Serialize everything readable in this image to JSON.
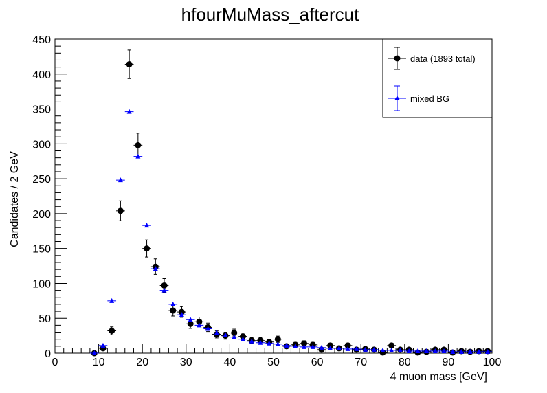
{
  "chart_data": {
    "type": "scatter",
    "title": "hfourMuMass_aftercut",
    "xlabel": "4 muon mass [GeV]",
    "ylabel": "Candidates / 2 GeV",
    "xlim": [
      0,
      100
    ],
    "ylim": [
      0,
      450
    ],
    "bin_width": 2,
    "x_ticks": [
      0,
      10,
      20,
      30,
      40,
      50,
      60,
      70,
      80,
      90,
      100
    ],
    "y_ticks": [
      0,
      50,
      100,
      150,
      200,
      250,
      300,
      350,
      400,
      450
    ],
    "grid": false,
    "legend_position": "top-right",
    "series": [
      {
        "name": "data (1893 total)",
        "color": "#000000",
        "marker": "circle",
        "x": [
          9,
          11,
          13,
          15,
          17,
          19,
          21,
          23,
          25,
          27,
          29,
          31,
          33,
          35,
          37,
          39,
          41,
          43,
          45,
          47,
          49,
          51,
          53,
          55,
          57,
          59,
          61,
          63,
          65,
          67,
          69,
          71,
          73,
          75,
          77,
          79,
          81,
          83,
          85,
          87,
          89,
          91,
          93,
          95,
          97,
          99
        ],
        "y": [
          0,
          7,
          32,
          204,
          414,
          298,
          150,
          124,
          97,
          61,
          59,
          42,
          45,
          37,
          27,
          25,
          29,
          24,
          18,
          18,
          16,
          20,
          10,
          12,
          14,
          12,
          5,
          11,
          7,
          11,
          5,
          6,
          5,
          1,
          11,
          5,
          5,
          1,
          2,
          5,
          5,
          1,
          3,
          2,
          3,
          3
        ]
      },
      {
        "name": "mixed BG",
        "color": "#0000ff",
        "marker": "triangle",
        "x": [
          9,
          11,
          13,
          15,
          17,
          19,
          21,
          23,
          25,
          27,
          29,
          31,
          33,
          35,
          37,
          39,
          41,
          43,
          45,
          47,
          49,
          51,
          53,
          55,
          57,
          59,
          61,
          63,
          65,
          67,
          69,
          71,
          73,
          75,
          77,
          79,
          81,
          83,
          85,
          87,
          89,
          91,
          93,
          95,
          97,
          99
        ],
        "y": [
          0,
          11,
          75,
          248,
          346,
          282,
          183,
          121,
          90,
          70,
          55,
          48,
          40,
          35,
          29,
          26,
          23,
          20,
          17,
          15,
          14,
          13,
          11,
          10,
          9,
          9,
          8,
          7,
          7,
          6,
          6,
          5,
          5,
          4,
          4,
          4,
          3,
          3,
          3,
          3,
          3,
          2,
          2,
          2,
          2,
          2
        ]
      }
    ]
  }
}
